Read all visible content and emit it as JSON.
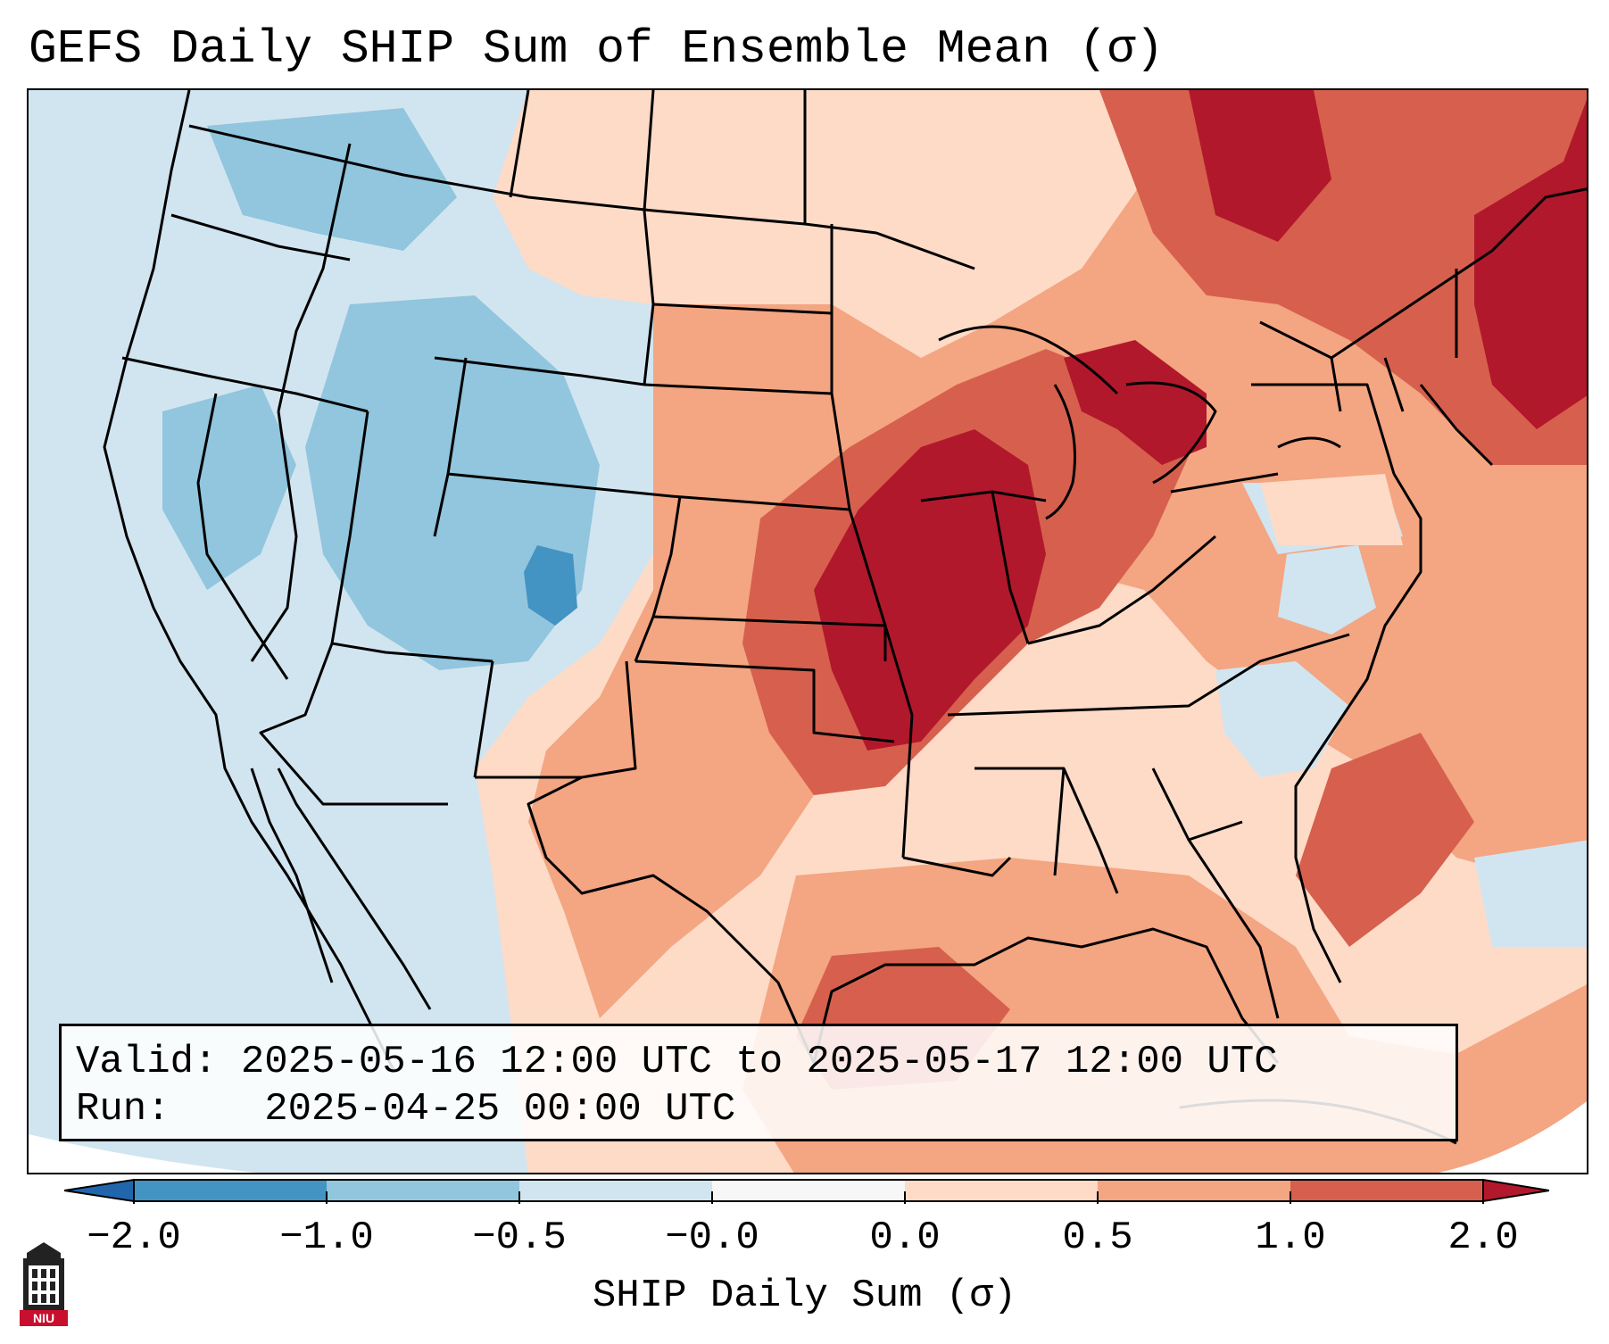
{
  "title": "GEFS Daily SHIP Sum of Ensemble Mean (σ)",
  "info": {
    "valid_label": "Valid:",
    "valid_value": "2025-05-16 12:00 UTC to 2025-05-17 12:00 UTC",
    "run_label": "Run:",
    "run_value": "2025-04-25 00:00 UTC"
  },
  "colorbar": {
    "label": "SHIP Daily Sum (σ)",
    "ticks": [
      "−2.0",
      "−1.0",
      "−0.5",
      "−0.0",
      "0.0",
      "0.5",
      "1.0",
      "2.0"
    ],
    "colors": {
      "below_min": "#2166ac",
      "-2.0_to_-1.0": "#4393c3",
      "-1.0_to_-0.5": "#92c5de",
      "-0.5_to_-0.0": "#d1e5f0",
      "-0.0_to_0.0": "#f7f7f7",
      "0.0_to_0.5": "#fddbc7",
      "0.5_to_1.0": "#f4a582",
      "1.0_to_2.0": "#d6604d",
      "above_max": "#b2182b"
    }
  },
  "logo": {
    "text": "NIU",
    "icon": "niu-building-icon"
  }
}
